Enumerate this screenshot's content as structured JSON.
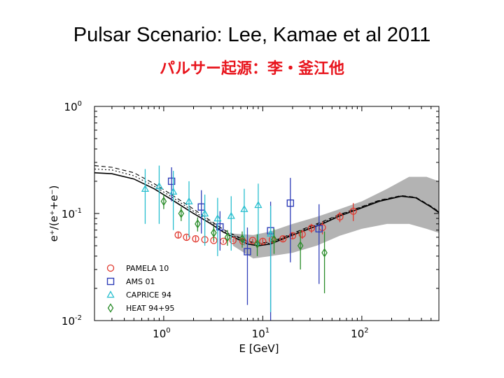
{
  "slide": {
    "title": "Pulsar Scenario: Lee, Kamae et al 2011",
    "subtitle": "パルサー起源：李・釜江他"
  },
  "chart_data": {
    "type": "scatter",
    "xscale": "log",
    "yscale": "log",
    "xlim": [
      0.2,
      600
    ],
    "ylim": [
      0.01,
      1
    ],
    "xlabel": "E [GeV]",
    "ylabel": "e⁺/(e⁺+e⁻)",
    "x_ticks": [
      {
        "base": "10",
        "exp": "0",
        "value": 1
      },
      {
        "base": "10",
        "exp": "1",
        "value": 10
      },
      {
        "base": "10",
        "exp": "2",
        "value": 100
      }
    ],
    "y_ticks": [
      {
        "base": "10",
        "exp": "0",
        "value": 1
      },
      {
        "base": "10",
        "exp": "-1",
        "value": 0.1
      },
      {
        "base": "10",
        "exp": "-2",
        "value": 0.01
      }
    ],
    "legend_position": "bottom-left",
    "series": [
      {
        "name": "PAMELA 10",
        "marker": "circle",
        "color": "#e0392f",
        "points": [
          [
            1.4,
            0.063,
            0.004
          ],
          [
            1.7,
            0.06,
            0.003
          ],
          [
            2.1,
            0.058,
            0.003
          ],
          [
            2.6,
            0.057,
            0.003
          ],
          [
            3.2,
            0.056,
            0.002
          ],
          [
            4.0,
            0.055,
            0.002
          ],
          [
            5.0,
            0.056,
            0.002
          ],
          [
            6.3,
            0.055,
            0.002
          ],
          [
            7.9,
            0.056,
            0.002
          ],
          [
            10,
            0.055,
            0.003
          ],
          [
            12.5,
            0.057,
            0.003
          ],
          [
            16,
            0.058,
            0.003
          ],
          [
            20,
            0.062,
            0.004
          ],
          [
            25,
            0.064,
            0.006
          ],
          [
            31,
            0.073,
            0.007
          ],
          [
            40,
            0.074,
            0.01
          ],
          [
            60,
            0.093,
            0.01
          ],
          [
            82,
            0.105,
            0.02
          ]
        ]
      },
      {
        "name": "AMS 01",
        "marker": "square",
        "color": "#2f3eb8",
        "points": [
          [
            1.2,
            0.2,
            0.07
          ],
          [
            2.4,
            0.115,
            0.05
          ],
          [
            3.7,
            0.075,
            0.03
          ],
          [
            7.0,
            0.044,
            0.03
          ],
          [
            12,
            0.069,
            0.06
          ],
          [
            19,
            0.125,
            0.09
          ],
          [
            37,
            0.072,
            0.05
          ]
        ]
      },
      {
        "name": "CAPRICE 94",
        "marker": "triangle",
        "color": "#29bfcf",
        "points": [
          [
            0.65,
            0.17,
            0.09
          ],
          [
            0.9,
            0.18,
            0.1
          ],
          [
            1.25,
            0.16,
            0.09
          ],
          [
            1.8,
            0.13,
            0.07
          ],
          [
            2.6,
            0.1,
            0.05
          ],
          [
            3.5,
            0.09,
            0.05
          ],
          [
            4.8,
            0.095,
            0.05
          ],
          [
            6.5,
            0.11,
            0.06
          ],
          [
            9,
            0.12,
            0.07
          ],
          [
            12,
            0.065,
            0.053
          ]
        ]
      },
      {
        "name": "HEAT 94+95",
        "marker": "diamond",
        "color": "#2a8c2a",
        "points": [
          [
            1.0,
            0.13,
            0.02
          ],
          [
            1.5,
            0.1,
            0.015
          ],
          [
            2.2,
            0.08,
            0.012
          ],
          [
            3.2,
            0.066,
            0.01
          ],
          [
            4.4,
            0.06,
            0.01
          ],
          [
            6.2,
            0.058,
            0.01
          ],
          [
            8.8,
            0.052,
            0.012
          ],
          [
            13,
            0.057,
            0.015
          ],
          [
            24,
            0.05,
            0.02
          ],
          [
            42,
            0.043,
            0.025
          ]
        ]
      }
    ],
    "model_curves": [
      {
        "name": "model (solid)",
        "style": "solid",
        "points": [
          [
            0.2,
            0.24
          ],
          [
            0.3,
            0.235
          ],
          [
            0.5,
            0.21
          ],
          [
            0.8,
            0.17
          ],
          [
            1.2,
            0.135
          ],
          [
            2,
            0.1
          ],
          [
            3,
            0.08
          ],
          [
            4,
            0.067
          ],
          [
            5.5,
            0.058
          ],
          [
            7,
            0.052
          ],
          [
            9,
            0.05
          ],
          [
            12,
            0.052
          ],
          [
            16,
            0.058
          ],
          [
            25,
            0.068
          ],
          [
            40,
            0.08
          ],
          [
            60,
            0.095
          ],
          [
            100,
            0.113
          ],
          [
            150,
            0.13
          ],
          [
            250,
            0.145
          ],
          [
            350,
            0.14
          ],
          [
            500,
            0.115
          ],
          [
            600,
            0.102
          ]
        ]
      },
      {
        "name": "model (dashed)",
        "style": "dashed",
        "points": [
          [
            0.2,
            0.28
          ],
          [
            0.3,
            0.27
          ],
          [
            0.5,
            0.24
          ],
          [
            0.8,
            0.19
          ],
          [
            1.2,
            0.15
          ],
          [
            2,
            0.11
          ],
          [
            3,
            0.085
          ],
          [
            4,
            0.071
          ],
          [
            5.5,
            0.061
          ],
          [
            7,
            0.055
          ],
          [
            9,
            0.053
          ],
          [
            12,
            0.054
          ],
          [
            16,
            0.06
          ],
          [
            25,
            0.071
          ],
          [
            40,
            0.084
          ],
          [
            60,
            0.098
          ],
          [
            100,
            0.116
          ],
          [
            150,
            0.133
          ],
          [
            250,
            0.147
          ],
          [
            350,
            0.142
          ],
          [
            500,
            0.117
          ],
          [
            600,
            0.104
          ]
        ]
      },
      {
        "name": "model (dotted)",
        "style": "dotted",
        "points": [
          [
            0.2,
            0.26
          ],
          [
            0.3,
            0.255
          ],
          [
            0.5,
            0.225
          ],
          [
            0.8,
            0.18
          ],
          [
            1.2,
            0.143
          ],
          [
            2,
            0.105
          ],
          [
            3,
            0.083
          ],
          [
            4,
            0.069
          ],
          [
            5.5,
            0.06
          ],
          [
            7,
            0.054
          ],
          [
            9,
            0.052
          ],
          [
            12,
            0.053
          ],
          [
            16,
            0.059
          ],
          [
            25,
            0.07
          ],
          [
            40,
            0.082
          ],
          [
            60,
            0.097
          ],
          [
            100,
            0.115
          ],
          [
            150,
            0.132
          ],
          [
            250,
            0.146
          ],
          [
            350,
            0.141
          ],
          [
            500,
            0.116
          ],
          [
            600,
            0.103
          ]
        ]
      }
    ],
    "uncertainty_band": {
      "upper": [
        [
          5,
          0.065
        ],
        [
          8,
          0.063
        ],
        [
          12,
          0.068
        ],
        [
          20,
          0.08
        ],
        [
          35,
          0.093
        ],
        [
          60,
          0.11
        ],
        [
          100,
          0.13
        ],
        [
          180,
          0.17
        ],
        [
          300,
          0.22
        ],
        [
          450,
          0.22
        ],
        [
          600,
          0.2
        ]
      ],
      "lower": [
        [
          5,
          0.05
        ],
        [
          8,
          0.038
        ],
        [
          12,
          0.04
        ],
        [
          20,
          0.043
        ],
        [
          35,
          0.05
        ],
        [
          60,
          0.062
        ],
        [
          100,
          0.072
        ],
        [
          180,
          0.08
        ],
        [
          300,
          0.08
        ],
        [
          450,
          0.072
        ],
        [
          600,
          0.066
        ]
      ],
      "color": "#b3b3b3"
    }
  }
}
